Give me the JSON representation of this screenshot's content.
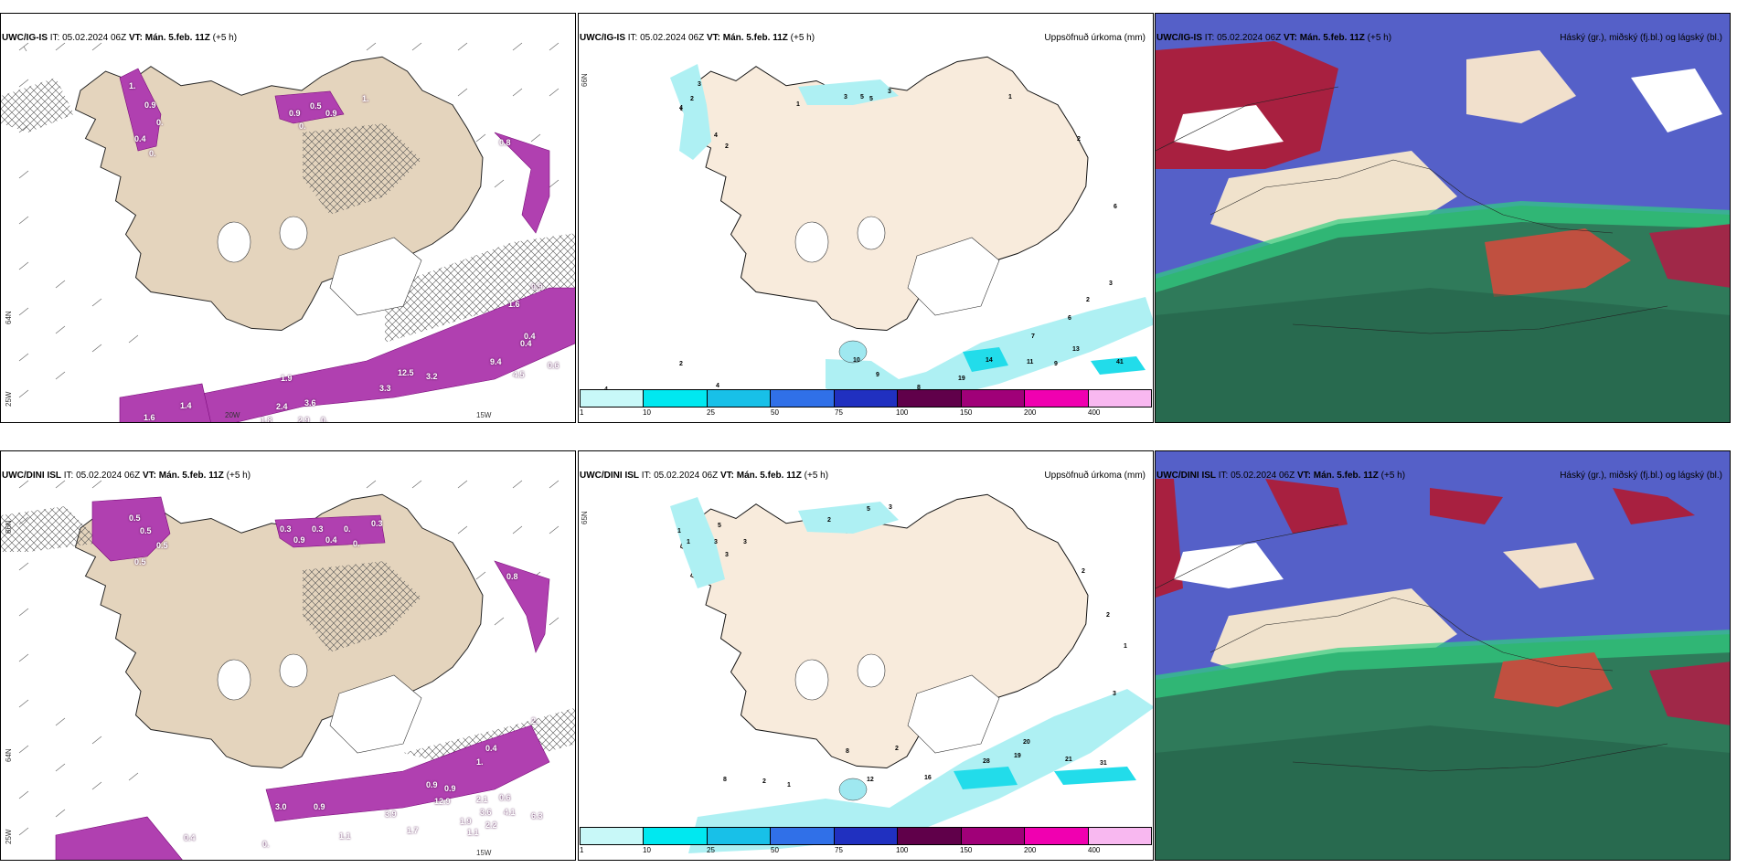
{
  "colors": {
    "land": "#efe3d2",
    "precip_light": "#aef0f3",
    "precip_med": "#22dcea",
    "magenta": "#cc33cc",
    "cloud_high": "#b02040",
    "cloud_mid": "#5050d0",
    "cloud_low": "#2a7a5a"
  },
  "rows": [
    {
      "model": "UWC/IG-IS",
      "it_label": "IT:",
      "it_value": "05.02.2024 06Z",
      "vt_label": "VT:",
      "vt_value": "Mán. 5.feb. 11Z",
      "lead": "(+5 h)",
      "wind_numbers": [
        "1.",
        "0.9",
        "0.",
        "0.4",
        "0.",
        "0.9",
        "0.5",
        "0.",
        "0.9",
        "0.8",
        "1.",
        "0.4",
        "1.4",
        "1.6",
        "1.9",
        "3.6",
        "2.9",
        "0.",
        "1.8",
        "2.4",
        "3.3",
        "12.5",
        "3.2",
        "9.4",
        "4.5",
        "0.4",
        "1.6",
        "0.9",
        "0.6"
      ],
      "precip_numbers": [
        "4",
        "2",
        "3",
        "2",
        "4",
        "1",
        "3",
        "5",
        "3",
        "5",
        "1",
        "2",
        "6",
        "2",
        "3",
        "7",
        "14",
        "11",
        "9",
        "13",
        "41",
        "19",
        "8",
        "9",
        "10",
        "4",
        "2",
        "4",
        "6"
      ]
    },
    {
      "model": "UWC/DINI ISL",
      "it_label": "IT:",
      "it_value": "05.02.2024 06Z",
      "vt_label": "VT:",
      "vt_value": "Mán. 5.feb. 11Z",
      "lead": "(+5 h)",
      "wind_numbers": [
        "0.5",
        "0.5",
        "0.5",
        "0.5",
        "0.3",
        "0.9",
        "0.3",
        "0.4",
        "0.",
        "0.",
        "0.3",
        "0.8",
        "0.4",
        "1.",
        "2.",
        "0.9",
        "0.9",
        "3.0",
        "0.9",
        "12.9",
        "3.9",
        "2.1",
        "3.6",
        "0.6",
        "4.1",
        "6.3",
        "1.1",
        "1.7",
        "1.9",
        "2.2",
        "1.1",
        "0.4",
        "0."
      ],
      "precip_numbers": [
        "1",
        "1",
        "5",
        "3",
        "3",
        "3",
        "5",
        "3",
        "2",
        "2",
        "2",
        "1",
        "3",
        "20",
        "19",
        "28",
        "21",
        "31",
        "16",
        "12",
        "8",
        "2",
        "1",
        "2",
        "8"
      ]
    }
  ],
  "panel_titles": {
    "precip": "Uppsöfnuð úrkoma (mm)",
    "clouds": "Háský (gr.), miðský (fj.bl.) og lágský (bl.)"
  },
  "axis_labels": {
    "lon_20w": "20W",
    "lon_15w": "15W",
    "lat_65n": "65N",
    "lat_64n": "64N",
    "lat_66n": "66N",
    "lon_25w": "25W"
  },
  "legend": {
    "labels": [
      "1",
      "10",
      "25",
      "50",
      "75",
      "100",
      "150",
      "200",
      "400"
    ],
    "colors": [
      "#c8f8f8",
      "#00e8f0",
      "#18c0e8",
      "#3070e8",
      "#2030c0",
      "#60004a",
      "#a00078",
      "#f000b0",
      "#f8b8f0"
    ]
  }
}
